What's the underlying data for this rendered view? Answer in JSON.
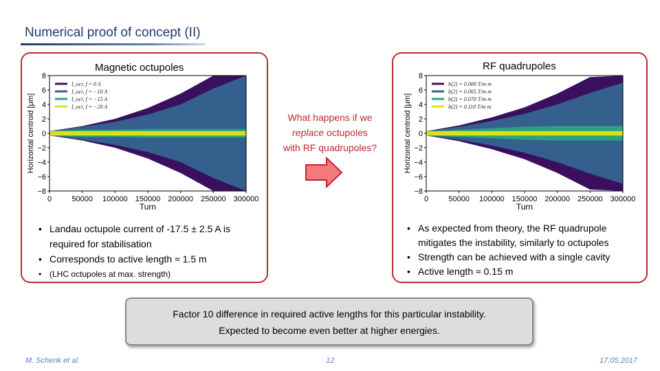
{
  "slide": {
    "title": "Numerical proof of concept (II)"
  },
  "left_panel": {
    "heading": "Magnetic octupoles",
    "bullets": [
      "Landau octupole current of -17.5 ± 2.5 A is required for stabilisation",
      "Corresponds to active length ≈ 1.5 m"
    ],
    "note": "(LHC octupoles at max. strength)"
  },
  "right_panel": {
    "heading": "RF quadrupoles",
    "bullets": [
      "As expected from theory, the RF quadrupole mitigates the instability, similarly to octupoles",
      "Strength can be achieved with a single cavity",
      "Active length ≈ 0.15 m"
    ]
  },
  "question": {
    "line1": "What happens if we",
    "line2_italic": "replace",
    "line2_rest": " octupoles",
    "line3": "with RF quadrupoles?"
  },
  "conclusion": {
    "line1": "Factor 10 difference in required active lengths for this particular instability.",
    "line2": "Expected to become even better at higher energies."
  },
  "footer": {
    "author": "M. Schenk et al.",
    "page": "12",
    "date": "17.05.2017"
  },
  "colors": {
    "accent_red": "#c1272d",
    "title_blue": "#1f3a6e",
    "series": [
      "#3b0f5f",
      "#35608d",
      "#2aa380",
      "#d8e219"
    ]
  },
  "chart_data": [
    {
      "type": "area",
      "title": "",
      "xlabel": "Turn",
      "ylabel": "Horizontal centroid [μm]",
      "x": [
        0,
        50000,
        100000,
        150000,
        200000,
        250000,
        300000
      ],
      "xlim": [
        0,
        300000
      ],
      "ylim": [
        -8,
        8
      ],
      "xticks": [
        "0",
        "50000",
        "100000",
        "150000",
        "200000",
        "250000",
        "300000"
      ],
      "yticks": [
        "−8",
        "−6",
        "−4",
        "−2",
        "0",
        "2",
        "4",
        "6",
        "8"
      ],
      "series": [
        {
          "name": "I_oct, f = 0 A",
          "envelope": [
            0.3,
            1.0,
            2.0,
            3.5,
            5.5,
            8.0,
            8.0
          ]
        },
        {
          "name": "I_oct, f = −10 A",
          "envelope": [
            0.3,
            0.9,
            1.6,
            2.6,
            4.0,
            6.2,
            8.0
          ]
        },
        {
          "name": "I_oct, f = −15 A",
          "envelope": [
            0.3,
            0.5,
            0.5,
            0.6,
            0.6,
            0.6,
            0.6
          ]
        },
        {
          "name": "I_oct, f = −20 A",
          "envelope": [
            0.3,
            0.3,
            0.3,
            0.3,
            0.3,
            0.3,
            0.3
          ]
        }
      ]
    },
    {
      "type": "area",
      "title": "",
      "xlabel": "Turn",
      "ylabel": "Horizontal centroid [μm]",
      "x": [
        0,
        50000,
        100000,
        150000,
        200000,
        250000,
        300000
      ],
      "xlim": [
        0,
        300000
      ],
      "ylim": [
        -8,
        8
      ],
      "xticks": [
        "0",
        "50000",
        "100000",
        "150000",
        "200000",
        "250000",
        "300000"
      ],
      "yticks": [
        "−8",
        "−6",
        "−4",
        "−2",
        "0",
        "2",
        "4",
        "6",
        "8"
      ],
      "series": [
        {
          "name": "b(2) = 0.000 T/m m",
          "envelope": [
            0.3,
            1.1,
            2.2,
            3.6,
            5.5,
            7.8,
            8.0
          ]
        },
        {
          "name": "b(2) = 0.065 T/m m",
          "envelope": [
            0.3,
            0.9,
            1.7,
            2.7,
            4.0,
            5.6,
            7.0
          ]
        },
        {
          "name": "b(2) = 0.070 T/m m",
          "envelope": [
            0.3,
            0.5,
            0.7,
            0.9,
            1.0,
            1.0,
            1.0
          ]
        },
        {
          "name": "b(2) = 0.110 T/m m",
          "envelope": [
            0.3,
            0.3,
            0.3,
            0.3,
            0.3,
            0.3,
            0.3
          ]
        }
      ]
    }
  ]
}
